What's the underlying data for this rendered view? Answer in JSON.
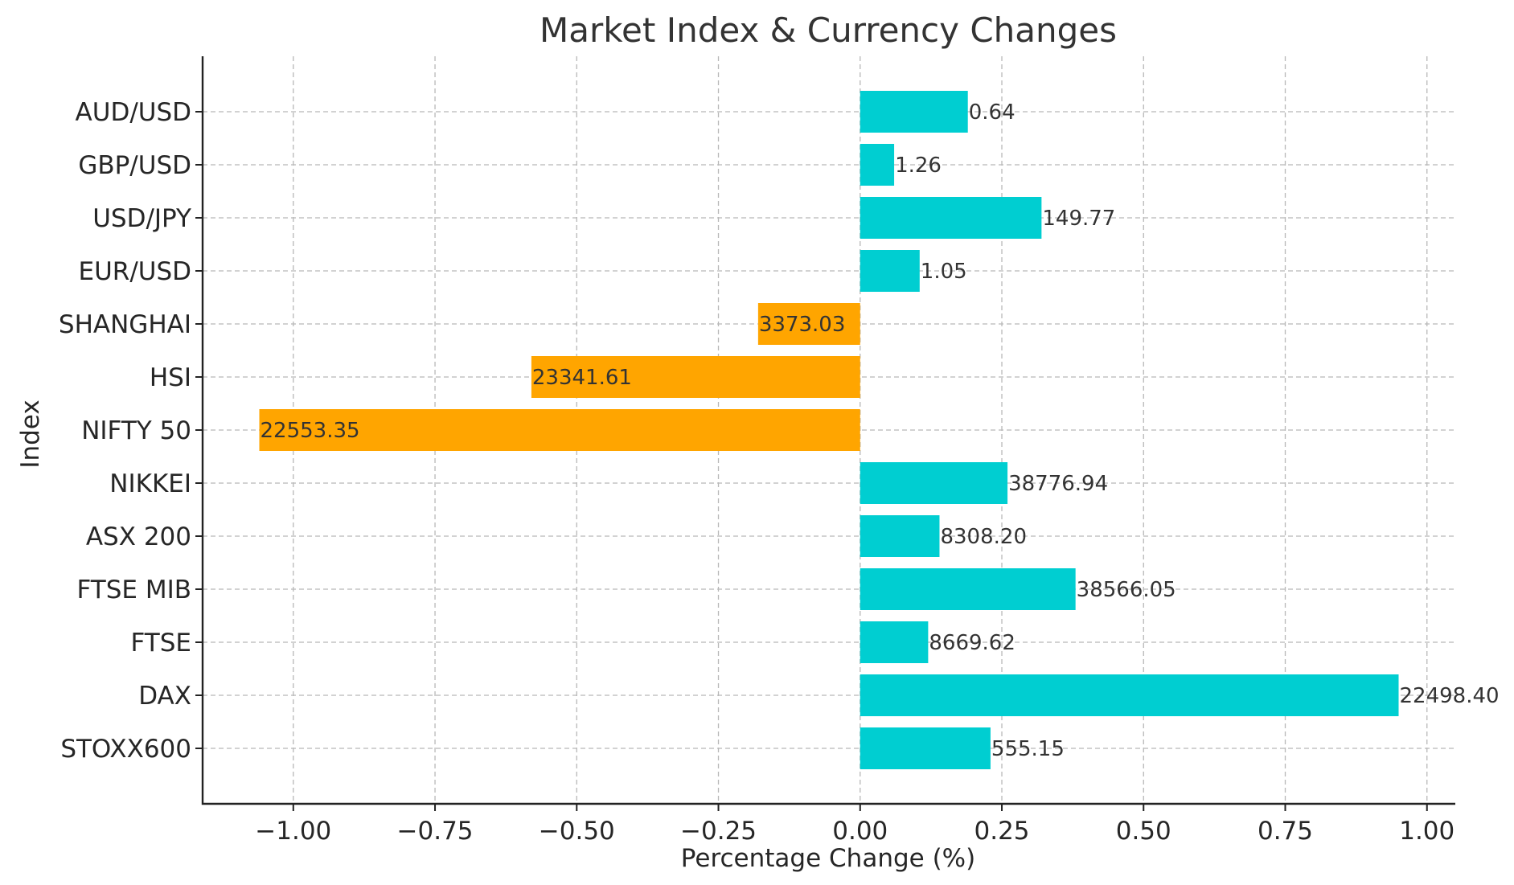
{
  "chart_data": {
    "type": "bar",
    "orientation": "horizontal",
    "title": "Market Index & Currency Changes",
    "xlabel": "Percentage Change (%)",
    "ylabel": "Index",
    "xlim": [
      -1.16,
      1.05
    ],
    "xticks": [
      -1.0,
      -0.75,
      -0.5,
      -0.25,
      0.0,
      0.25,
      0.5,
      0.75,
      1.0
    ],
    "xtick_labels": [
      "−1.00",
      "−0.75",
      "−0.50",
      "−0.25",
      "0.00",
      "0.25",
      "0.50",
      "0.75",
      "1.00"
    ],
    "grid": true,
    "colors": {
      "positive": "#00ced1",
      "negative": "#ffa500"
    },
    "categories": [
      "STOXX600",
      "DAX",
      "FTSE",
      "FTSE MIB",
      "ASX 200",
      "NIKKEI",
      "NIFTY 50",
      "HSI",
      "SHANGHAI",
      "EUR/USD",
      "USD/JPY",
      "GBP/USD",
      "AUD/USD"
    ],
    "values": [
      0.23,
      0.95,
      0.12,
      0.38,
      0.14,
      0.26,
      -1.06,
      -0.58,
      -0.18,
      0.105,
      0.32,
      0.06,
      0.19
    ],
    "data_labels": [
      "555.15",
      "22498.40",
      "8669.62",
      "38566.05",
      "8308.20",
      "38776.94",
      "22553.35",
      "23341.61",
      "3373.03",
      "1.05",
      "149.77",
      "1.26",
      "0.64"
    ]
  }
}
